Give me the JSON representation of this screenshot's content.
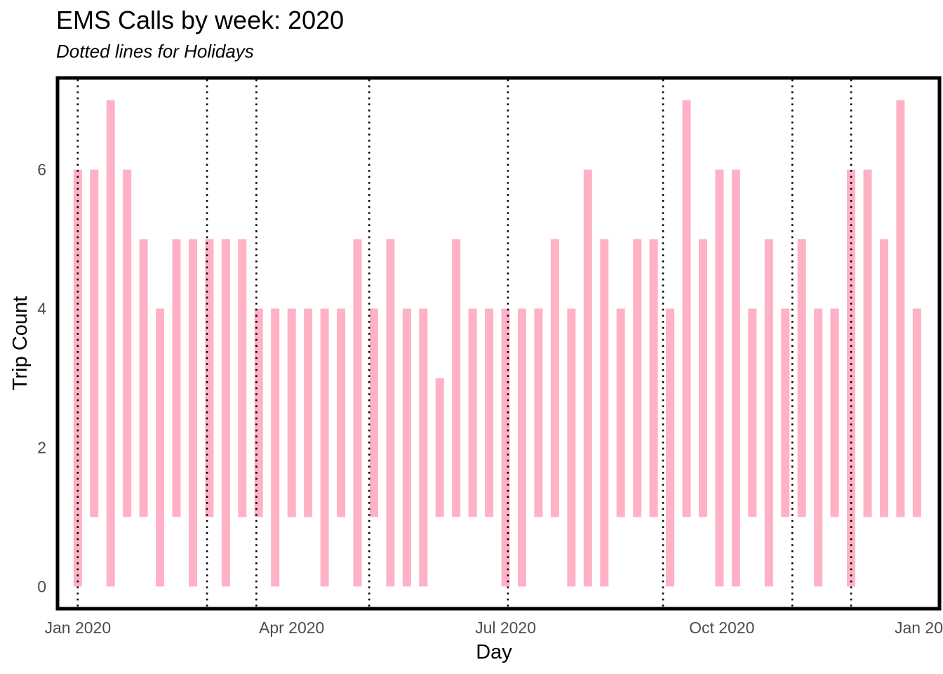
{
  "chart_data": {
    "type": "line",
    "title": "EMS Calls by week: 2020",
    "subtitle": "Dotted lines for Holidays",
    "xlabel": "Day",
    "ylabel": "Trip Count",
    "xlim": [
      "2019-12-24",
      "2021-01-01"
    ],
    "ylim": [
      -0.3,
      7.3
    ],
    "x_ticks": [
      {
        "value": "2020-01-01",
        "label": "Jan 2020"
      },
      {
        "value": "2020-04-01",
        "label": "Apr 2020"
      },
      {
        "value": "2020-07-01",
        "label": "Jul 2020"
      },
      {
        "value": "2020-10-01",
        "label": "Oct 2020"
      },
      {
        "value": "2021-01-01",
        "label": "Jan 20"
      }
    ],
    "y_ticks": [
      0,
      2,
      4,
      6
    ],
    "holidays": [
      "2020-01-01",
      "2020-02-25",
      "2020-03-17",
      "2020-05-04",
      "2020-07-02",
      "2020-09-06",
      "2020-10-31",
      "2020-11-25"
    ],
    "grid": false,
    "legend": "none",
    "line_color": "#FFB1C5",
    "holiday_line_color": "#000000",
    "series": [
      {
        "x": [
          "2020-01-01",
          "2020-01-08",
          "2020-01-15",
          "2020-01-22",
          "2020-01-29",
          "2020-02-05",
          "2020-02-12",
          "2020-02-19",
          "2020-02-26",
          "2020-03-04",
          "2020-03-11",
          "2020-03-18",
          "2020-03-25",
          "2020-04-01",
          "2020-04-08",
          "2020-04-15",
          "2020-04-22",
          "2020-04-29",
          "2020-05-06",
          "2020-05-13",
          "2020-05-20",
          "2020-05-27",
          "2020-06-03",
          "2020-06-10",
          "2020-06-17",
          "2020-06-24",
          "2020-07-01",
          "2020-07-08",
          "2020-07-15",
          "2020-07-22",
          "2020-07-29",
          "2020-08-05",
          "2020-08-12",
          "2020-08-19",
          "2020-08-26",
          "2020-09-02",
          "2020-09-09",
          "2020-09-16",
          "2020-09-23",
          "2020-09-30",
          "2020-10-07",
          "2020-10-14",
          "2020-10-21",
          "2020-10-28",
          "2020-11-04",
          "2020-11-11",
          "2020-11-18",
          "2020-11-25",
          "2020-12-02",
          "2020-12-09",
          "2020-12-16",
          "2020-12-23"
        ],
        "min": [
          0,
          1,
          0,
          1,
          1,
          0,
          1,
          0,
          1,
          0,
          1,
          1,
          0,
          1,
          1,
          0,
          1,
          0,
          1,
          0,
          0,
          0,
          1,
          1,
          1,
          1,
          0,
          0,
          1,
          1,
          0,
          0,
          0,
          1,
          1,
          1,
          0,
          1,
          1,
          0,
          0,
          1,
          0,
          1,
          1,
          0,
          1,
          0,
          1,
          1,
          1,
          1
        ],
        "max": [
          6,
          6,
          7,
          6,
          5,
          4,
          5,
          5,
          5,
          5,
          5,
          4,
          4,
          4,
          4,
          4,
          4,
          5,
          4,
          5,
          4,
          4,
          3,
          5,
          4,
          4,
          4,
          4,
          4,
          5,
          4,
          6,
          5,
          4,
          5,
          5,
          4,
          7,
          5,
          6,
          6,
          4,
          5,
          4,
          5,
          4,
          4,
          6,
          6,
          5,
          7,
          4
        ]
      }
    ]
  }
}
